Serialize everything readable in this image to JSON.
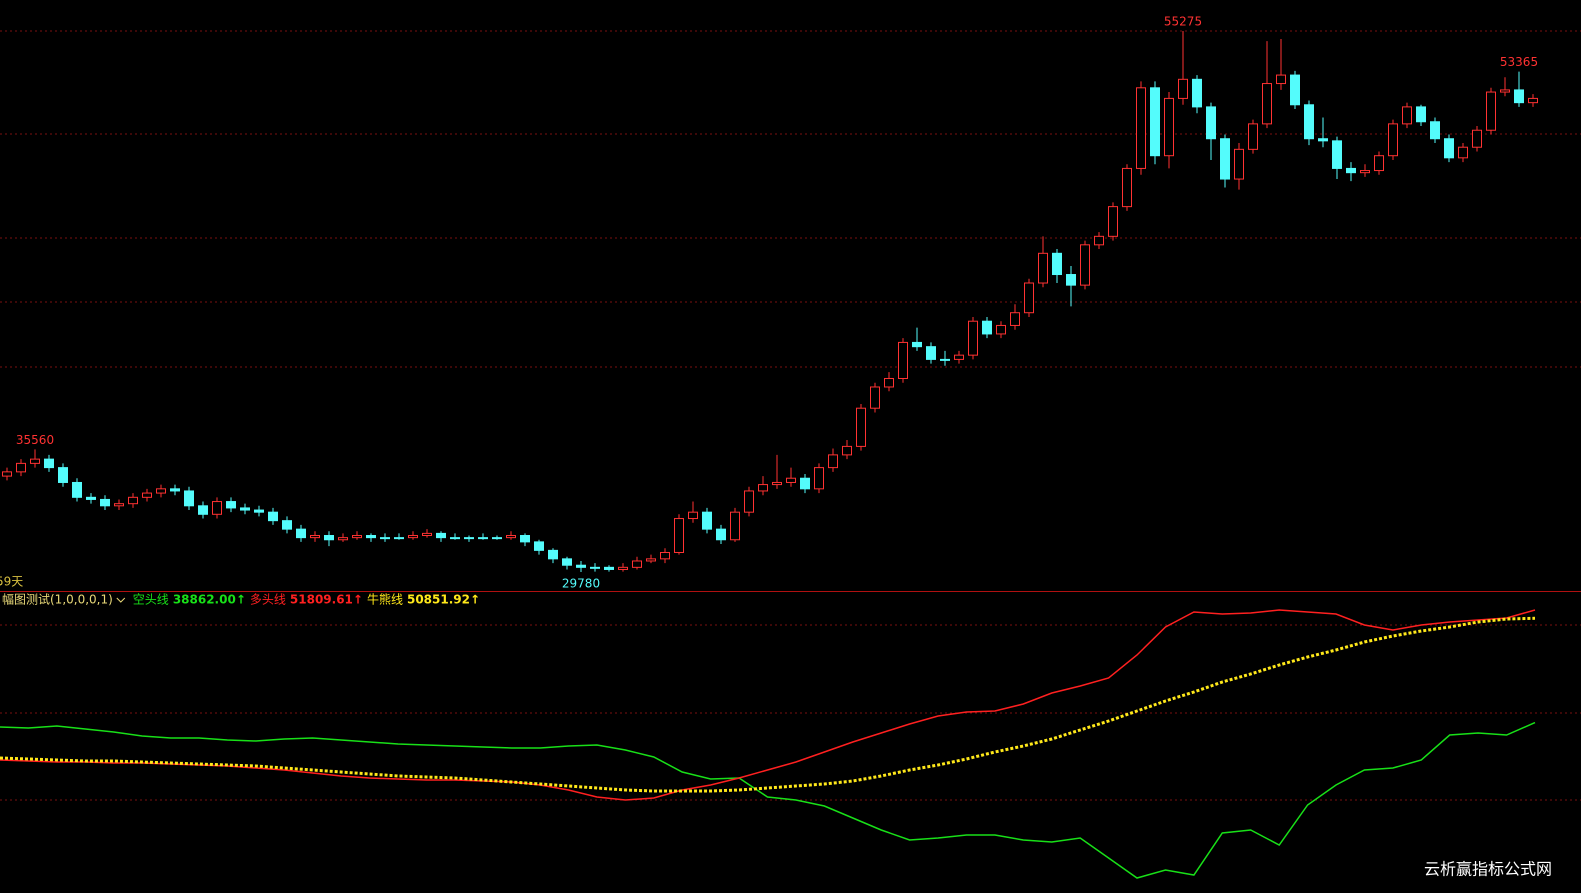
{
  "chart_data": {
    "type": "candlestick",
    "ylim": [
      28932,
      56738
    ],
    "candles": [
      [
        34300,
        34700,
        34100,
        34500
      ],
      [
        34500,
        35100,
        34300,
        34900
      ],
      [
        34900,
        35560,
        34700,
        35100
      ],
      [
        35100,
        35300,
        34500,
        34700
      ],
      [
        34700,
        34900,
        33800,
        34000
      ],
      [
        34000,
        34200,
        33100,
        33300
      ],
      [
        33300,
        33500,
        33000,
        33200
      ],
      [
        33200,
        33400,
        32700,
        32900
      ],
      [
        32900,
        33200,
        32700,
        33000
      ],
      [
        33000,
        33500,
        32800,
        33300
      ],
      [
        33300,
        33700,
        33100,
        33500
      ],
      [
        33500,
        33900,
        33300,
        33700
      ],
      [
        33700,
        33900,
        33400,
        33600
      ],
      [
        33600,
        33800,
        32700,
        32900
      ],
      [
        32900,
        33100,
        32300,
        32500
      ],
      [
        32500,
        33300,
        32300,
        33100
      ],
      [
        33100,
        33300,
        32600,
        32800
      ],
      [
        32800,
        33000,
        32500,
        32700
      ],
      [
        32700,
        32900,
        32400,
        32600
      ],
      [
        32600,
        32800,
        32000,
        32200
      ],
      [
        32200,
        32400,
        31600,
        31800
      ],
      [
        31800,
        32000,
        31200,
        31400
      ],
      [
        31400,
        31700,
        31200,
        31500
      ],
      [
        31500,
        31700,
        31000,
        31300
      ],
      [
        31300,
        31600,
        31200,
        31400
      ],
      [
        31400,
        31700,
        31300,
        31500
      ],
      [
        31500,
        31600,
        31200,
        31400
      ],
      [
        31400,
        31600,
        31200,
        31400
      ],
      [
        31400,
        31600,
        31300,
        31400
      ],
      [
        31400,
        31700,
        31300,
        31500
      ],
      [
        31500,
        31800,
        31400,
        31600
      ],
      [
        31600,
        31700,
        31200,
        31400
      ],
      [
        31400,
        31600,
        31300,
        31400
      ],
      [
        31400,
        31500,
        31200,
        31400
      ],
      [
        31400,
        31600,
        31300,
        31400
      ],
      [
        31400,
        31500,
        31300,
        31400
      ],
      [
        31400,
        31700,
        31300,
        31500
      ],
      [
        31500,
        31600,
        31000,
        31200
      ],
      [
        31200,
        31300,
        30600,
        30800
      ],
      [
        30800,
        30900,
        30200,
        30400
      ],
      [
        30400,
        30500,
        29900,
        30100
      ],
      [
        30100,
        30300,
        29780,
        30000
      ],
      [
        30000,
        30200,
        29800,
        30000
      ],
      [
        30000,
        30100,
        29800,
        29900
      ],
      [
        29900,
        30200,
        29800,
        30000
      ],
      [
        30000,
        30500,
        29900,
        30300
      ],
      [
        30300,
        30600,
        30200,
        30400
      ],
      [
        30400,
        30900,
        30200,
        30700
      ],
      [
        30700,
        32500,
        30600,
        32300
      ],
      [
        32300,
        33100,
        32100,
        32600
      ],
      [
        32600,
        32800,
        31600,
        31800
      ],
      [
        31800,
        32000,
        31100,
        31300
      ],
      [
        31300,
        32800,
        31200,
        32600
      ],
      [
        32600,
        33800,
        32400,
        33600
      ],
      [
        33600,
        34300,
        33400,
        33900
      ],
      [
        33900,
        35300,
        33700,
        34000
      ],
      [
        34000,
        34700,
        33800,
        34200
      ],
      [
        34200,
        34400,
        33500,
        33700
      ],
      [
        33700,
        34900,
        33500,
        34700
      ],
      [
        34700,
        35600,
        34500,
        35300
      ],
      [
        35300,
        36000,
        35100,
        35700
      ],
      [
        35700,
        37700,
        35500,
        37500
      ],
      [
        37500,
        38700,
        37300,
        38500
      ],
      [
        38500,
        39200,
        38300,
        38900
      ],
      [
        38900,
        40800,
        38700,
        40600
      ],
      [
        40600,
        41300,
        40200,
        40400
      ],
      [
        40400,
        40600,
        39600,
        39800
      ],
      [
        39800,
        40200,
        39500,
        39800
      ],
      [
        39800,
        40200,
        39600,
        40000
      ],
      [
        40000,
        41800,
        39800,
        41600
      ],
      [
        41600,
        41800,
        40800,
        41000
      ],
      [
        41000,
        41600,
        40800,
        41400
      ],
      [
        41400,
        42400,
        41200,
        42000
      ],
      [
        42000,
        43600,
        41800,
        43400
      ],
      [
        43400,
        45600,
        43200,
        44800
      ],
      [
        44800,
        45000,
        43400,
        43800
      ],
      [
        43800,
        44200,
        42300,
        43300
      ],
      [
        43300,
        45400,
        43100,
        45200
      ],
      [
        45200,
        45800,
        45000,
        45600
      ],
      [
        45600,
        47200,
        45400,
        47000
      ],
      [
        47000,
        49000,
        46800,
        48800
      ],
      [
        48800,
        52900,
        48500,
        52600
      ],
      [
        52600,
        52900,
        49000,
        49400
      ],
      [
        49400,
        52400,
        48800,
        52100
      ],
      [
        52100,
        55275,
        51800,
        53000
      ],
      [
        53000,
        53200,
        51400,
        51700
      ],
      [
        51700,
        51900,
        49200,
        50200
      ],
      [
        50200,
        50400,
        47900,
        48300
      ],
      [
        48300,
        50000,
        47800,
        49700
      ],
      [
        49700,
        51100,
        49500,
        50900
      ],
      [
        50900,
        54800,
        50700,
        52800
      ],
      [
        52800,
        54900,
        52500,
        53200
      ],
      [
        53200,
        53400,
        51600,
        51800
      ],
      [
        51800,
        52000,
        49900,
        50200
      ],
      [
        50200,
        51200,
        49800,
        50100
      ],
      [
        50100,
        50300,
        48300,
        48800
      ],
      [
        48800,
        49100,
        48200,
        48600
      ],
      [
        48600,
        49000,
        48400,
        48700
      ],
      [
        48700,
        49600,
        48500,
        49400
      ],
      [
        49400,
        51100,
        49200,
        50900
      ],
      [
        50900,
        51900,
        50700,
        51700
      ],
      [
        51700,
        51800,
        50800,
        51000
      ],
      [
        51000,
        51200,
        50000,
        50200
      ],
      [
        50200,
        50400,
        49100,
        49300
      ],
      [
        49300,
        50000,
        49100,
        49800
      ],
      [
        49800,
        50800,
        49600,
        50600
      ],
      [
        50600,
        52600,
        50400,
        52400
      ],
      [
        52400,
        53100,
        52200,
        52500
      ],
      [
        52500,
        53365,
        51700,
        51900
      ],
      [
        51900,
        52300,
        51700,
        52100
      ]
    ],
    "up_color": "#ff3232",
    "down_color": "#54fcfc",
    "annotations": [
      {
        "text": "55275",
        "color": "#ff3232",
        "candle": 84
      },
      {
        "text": "53365",
        "color": "#ff3232",
        "candle": 108
      },
      {
        "text": "35560",
        "color": "#ff3232",
        "candle": 2
      },
      {
        "text": "29780",
        "color": "#54fcfc",
        "candle": 41
      }
    ],
    "period_label": "59天",
    "indicator": {
      "type": "line",
      "title": "幅图测试(1,0,0,0,1)",
      "ylim": [
        19264,
        53879
      ],
      "series": [
        {
          "name": "空头线",
          "color": "#18e018",
          "value_label": "38862.00↑",
          "values": [
            38354,
            38239,
            38469,
            38124,
            37779,
            37319,
            37089,
            37089,
            36859,
            36744,
            36974,
            37089,
            36859,
            36629,
            36399,
            36284,
            36169,
            36054,
            35939,
            35939,
            36169,
            36284,
            35709,
            34904,
            33179,
            32374,
            32489,
            30304,
            29959,
            29269,
            27889,
            26509,
            25359,
            25589,
            25934,
            25934,
            25359,
            25129,
            25589,
            23289,
            20989,
            21909,
            21334,
            26164,
            26509,
            24784,
            29384,
            31684,
            33409,
            33639,
            34559,
            37434,
            37664,
            37434,
            38862.0
          ]
        },
        {
          "name": "多头线",
          "color": "#ff2020",
          "value_label": "51809.61↑",
          "values": [
            34559,
            34444,
            34329,
            34329,
            34214,
            34214,
            34099,
            33984,
            33869,
            33639,
            33409,
            33064,
            32719,
            32489,
            32374,
            32259,
            32259,
            32144,
            32029,
            31684,
            31109,
            30304,
            29959,
            30189,
            31109,
            31684,
            32489,
            33409,
            34329,
            35479,
            36629,
            37664,
            38699,
            39619,
            40079,
            40194,
            41004,
            42269,
            43074,
            43994,
            46634,
            49854,
            51579,
            51349,
            51464,
            51809,
            51579,
            51349,
            50084,
            49509,
            50084,
            50429,
            50659,
            50889,
            51809.61
          ]
        },
        {
          "name": "牛熊线",
          "color": "#ffe81a",
          "dashed": true,
          "value_label": "50851.92↑",
          "values": [
            34789,
            34674,
            34559,
            34444,
            34444,
            34329,
            34214,
            34099,
            33984,
            33869,
            33639,
            33409,
            33179,
            32949,
            32719,
            32604,
            32489,
            32259,
            32029,
            31799,
            31569,
            31339,
            31109,
            30994,
            30994,
            30994,
            31109,
            31339,
            31569,
            31799,
            32144,
            32719,
            33409,
            33984,
            34674,
            35479,
            36169,
            36974,
            38009,
            39044,
            40194,
            41344,
            42379,
            43529,
            44449,
            45484,
            46404,
            47209,
            48129,
            48819,
            49394,
            49854,
            50429,
            50774,
            50851.92
          ]
        }
      ]
    },
    "watermark": "云析赢指标公式网"
  }
}
